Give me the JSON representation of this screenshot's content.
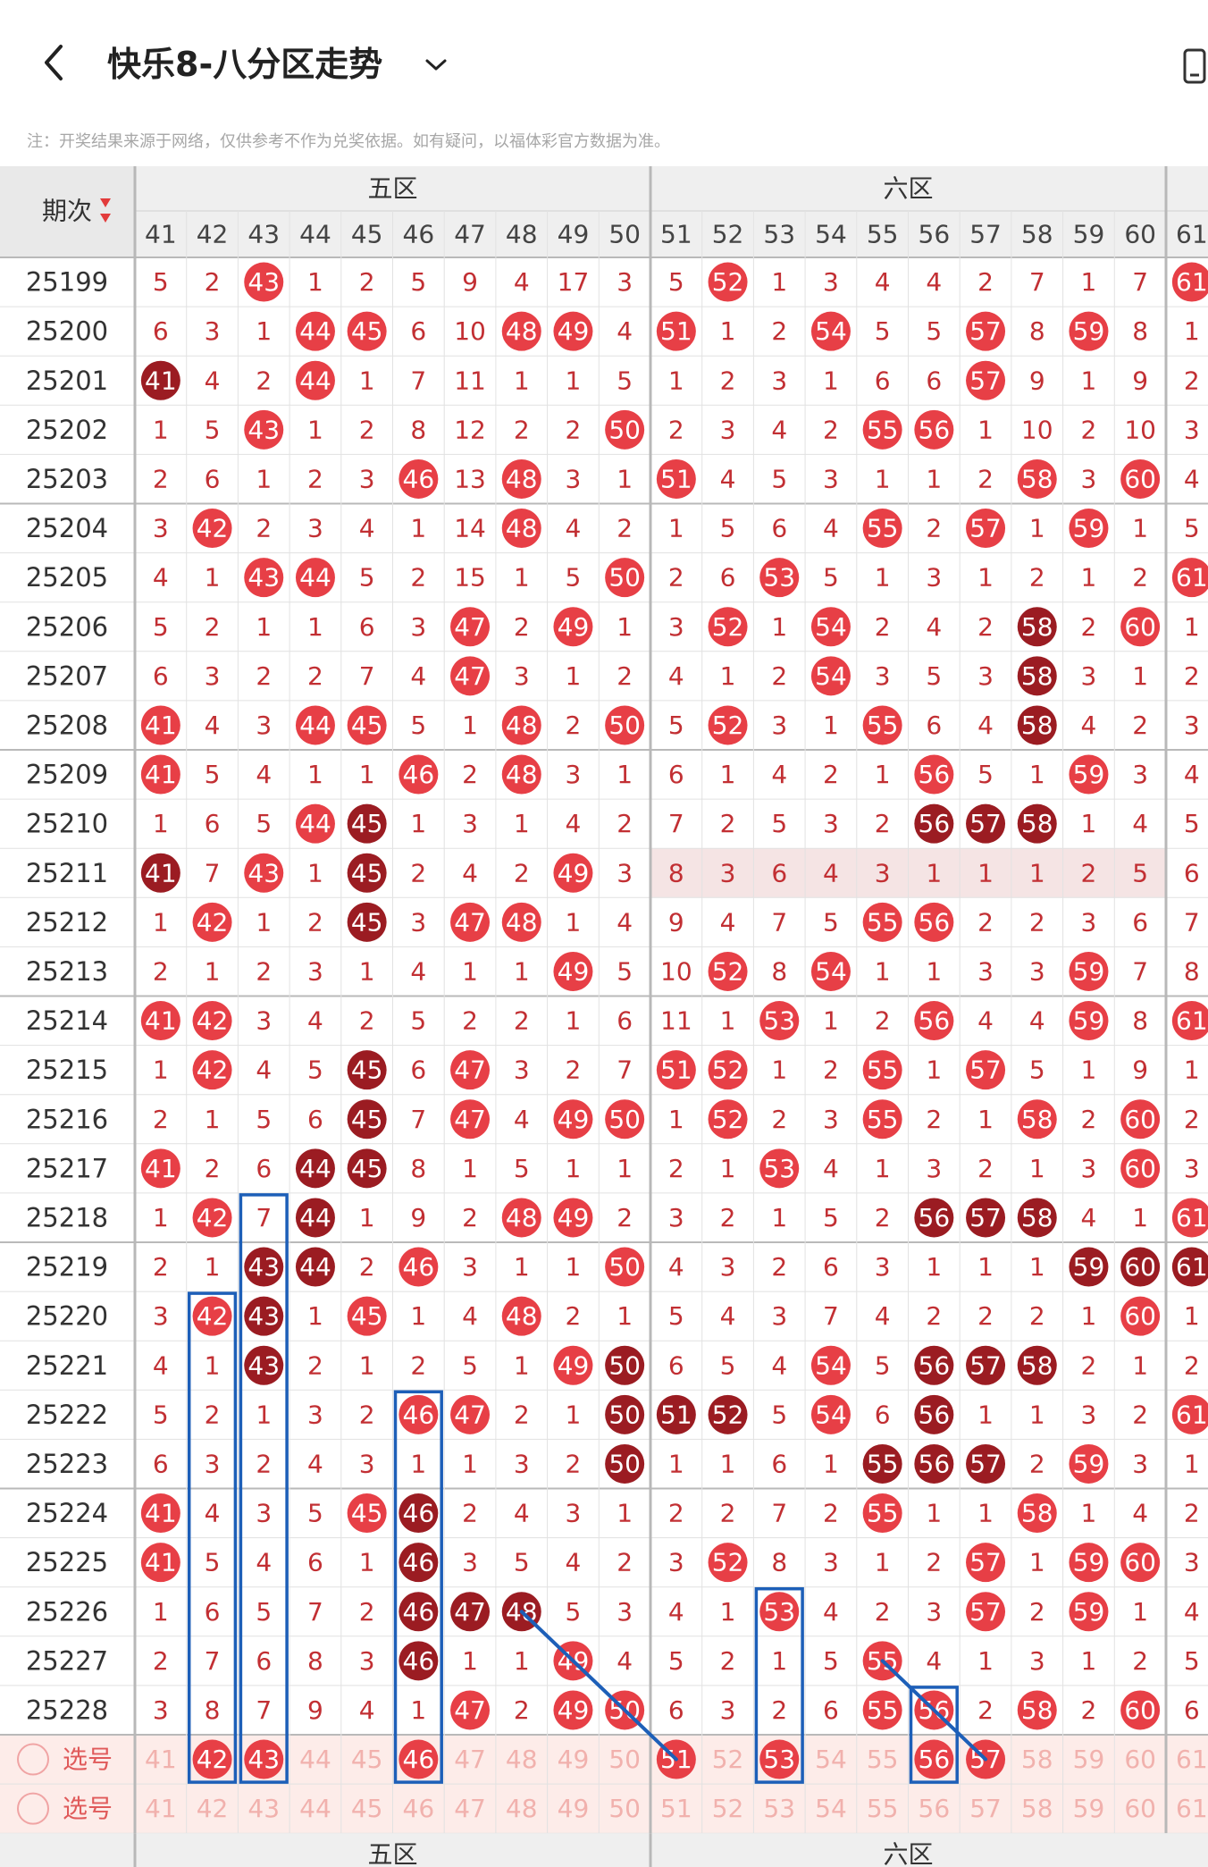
{
  "header": {
    "title": "快乐8-八分区走势",
    "note": "注：开奖结果来源于网络，仅供参考不作为兑奖依据。如有疑问，以福体彩官方数据为准。"
  },
  "table": {
    "period_header": "期次",
    "zones": [
      "五区",
      "六区"
    ],
    "numbers": [
      41,
      42,
      43,
      44,
      45,
      46,
      47,
      48,
      49,
      50,
      51,
      52,
      53,
      54,
      55,
      56,
      57,
      58,
      59,
      60,
      61
    ],
    "select_label": "选号",
    "highlight_row_period": "25211",
    "colors": {
      "hit": "#e73f46",
      "consecutive": "#9b1c22",
      "miss_text": "#c22f33",
      "accent": "#1d5fb8",
      "row_highlight": "#f5e4e4",
      "select_bg": "#fdece9",
      "header_bg": "#efefef"
    },
    "rows": [
      {
        "period": "25199",
        "cells": [
          "5",
          "2",
          "h43",
          "1",
          "2",
          "5",
          "9",
          "4",
          "17",
          "3",
          "5",
          "h52",
          "1",
          "3",
          "4",
          "4",
          "2",
          "7",
          "1",
          "7",
          "h61"
        ]
      },
      {
        "period": "25200",
        "cells": [
          "6",
          "3",
          "1",
          "h44",
          "h45",
          "6",
          "10",
          "h48",
          "h49",
          "4",
          "h51",
          "1",
          "2",
          "h54",
          "5",
          "5",
          "h57",
          "8",
          "h59",
          "8",
          "1"
        ]
      },
      {
        "period": "25201",
        "cells": [
          "d41",
          "4",
          "2",
          "h44",
          "1",
          "7",
          "11",
          "1",
          "1",
          "5",
          "1",
          "2",
          "3",
          "1",
          "6",
          "6",
          "h57",
          "9",
          "1",
          "9",
          "2"
        ]
      },
      {
        "period": "25202",
        "cells": [
          "1",
          "5",
          "h43",
          "1",
          "2",
          "8",
          "12",
          "2",
          "2",
          "h50",
          "2",
          "3",
          "4",
          "2",
          "h55",
          "h56",
          "1",
          "10",
          "2",
          "10",
          "3"
        ]
      },
      {
        "period": "25203",
        "cells": [
          "2",
          "6",
          "1",
          "2",
          "3",
          "h46",
          "13",
          "h48",
          "3",
          "1",
          "h51",
          "4",
          "5",
          "3",
          "1",
          "1",
          "2",
          "h58",
          "3",
          "h60",
          "4"
        ]
      },
      {
        "period": "25204",
        "cells": [
          "3",
          "h42",
          "2",
          "3",
          "4",
          "1",
          "14",
          "h48",
          "4",
          "2",
          "1",
          "5",
          "6",
          "4",
          "h55",
          "2",
          "h57",
          "1",
          "h59",
          "1",
          "5"
        ]
      },
      {
        "period": "25205",
        "cells": [
          "4",
          "1",
          "h43",
          "h44",
          "5",
          "2",
          "15",
          "1",
          "5",
          "h50",
          "2",
          "6",
          "h53",
          "5",
          "1",
          "3",
          "1",
          "2",
          "1",
          "2",
          "h61"
        ]
      },
      {
        "period": "25206",
        "cells": [
          "5",
          "2",
          "1",
          "1",
          "6",
          "3",
          "h47",
          "2",
          "h49",
          "1",
          "3",
          "h52",
          "1",
          "h54",
          "2",
          "4",
          "2",
          "d58",
          "2",
          "h60",
          "1"
        ]
      },
      {
        "period": "25207",
        "cells": [
          "6",
          "3",
          "2",
          "2",
          "7",
          "4",
          "h47",
          "3",
          "1",
          "2",
          "4",
          "1",
          "2",
          "h54",
          "3",
          "5",
          "3",
          "d58",
          "3",
          "1",
          "2"
        ]
      },
      {
        "period": "25208",
        "cells": [
          "h41",
          "4",
          "3",
          "h44",
          "h45",
          "5",
          "1",
          "h48",
          "2",
          "h50",
          "5",
          "h52",
          "3",
          "1",
          "h55",
          "6",
          "4",
          "d58",
          "4",
          "2",
          "3"
        ]
      },
      {
        "period": "25209",
        "cells": [
          "h41",
          "5",
          "4",
          "1",
          "1",
          "h46",
          "2",
          "h48",
          "3",
          "1",
          "6",
          "1",
          "4",
          "2",
          "1",
          "h56",
          "5",
          "1",
          "h59",
          "3",
          "4"
        ]
      },
      {
        "period": "25210",
        "cells": [
          "1",
          "6",
          "5",
          "h44",
          "d45",
          "1",
          "3",
          "1",
          "4",
          "2",
          "7",
          "2",
          "5",
          "3",
          "2",
          "d56",
          "d57",
          "d58",
          "1",
          "4",
          "5"
        ]
      },
      {
        "period": "25211",
        "cells": [
          "d41",
          "7",
          "h43",
          "1",
          "d45",
          "2",
          "4",
          "2",
          "h49",
          "3",
          "8",
          "3",
          "6",
          "4",
          "3",
          "1",
          "1",
          "1",
          "2",
          "5",
          "6"
        ]
      },
      {
        "period": "25212",
        "cells": [
          "1",
          "h42",
          "1",
          "2",
          "d45",
          "3",
          "h47",
          "h48",
          "1",
          "4",
          "9",
          "4",
          "7",
          "5",
          "h55",
          "h56",
          "2",
          "2",
          "3",
          "6",
          "7"
        ]
      },
      {
        "period": "25213",
        "cells": [
          "2",
          "1",
          "2",
          "3",
          "1",
          "4",
          "1",
          "1",
          "h49",
          "5",
          "10",
          "h52",
          "8",
          "h54",
          "1",
          "1",
          "3",
          "3",
          "h59",
          "7",
          "8"
        ]
      },
      {
        "period": "25214",
        "cells": [
          "h41",
          "h42",
          "3",
          "4",
          "2",
          "5",
          "2",
          "2",
          "1",
          "6",
          "11",
          "1",
          "h53",
          "1",
          "2",
          "h56",
          "4",
          "4",
          "h59",
          "8",
          "h61"
        ]
      },
      {
        "period": "25215",
        "cells": [
          "1",
          "h42",
          "4",
          "5",
          "d45",
          "6",
          "h47",
          "3",
          "2",
          "7",
          "h51",
          "h52",
          "1",
          "2",
          "h55",
          "1",
          "h57",
          "5",
          "1",
          "9",
          "1"
        ]
      },
      {
        "period": "25216",
        "cells": [
          "2",
          "1",
          "5",
          "6",
          "d45",
          "7",
          "h47",
          "4",
          "h49",
          "h50",
          "1",
          "h52",
          "2",
          "3",
          "h55",
          "2",
          "1",
          "h58",
          "2",
          "h60",
          "2"
        ]
      },
      {
        "period": "25217",
        "cells": [
          "h41",
          "2",
          "6",
          "d44",
          "d45",
          "8",
          "1",
          "5",
          "1",
          "1",
          "2",
          "1",
          "h53",
          "4",
          "1",
          "3",
          "2",
          "1",
          "3",
          "h60",
          "3"
        ]
      },
      {
        "period": "25218",
        "cells": [
          "1",
          "h42",
          "7",
          "d44",
          "1",
          "9",
          "2",
          "h48",
          "h49",
          "2",
          "3",
          "2",
          "1",
          "5",
          "2",
          "d56",
          "d57",
          "d58",
          "4",
          "1",
          "h61"
        ]
      },
      {
        "period": "25219",
        "cells": [
          "2",
          "1",
          "d43",
          "d44",
          "2",
          "h46",
          "3",
          "1",
          "1",
          "h50",
          "4",
          "3",
          "2",
          "6",
          "3",
          "1",
          "1",
          "1",
          "d59",
          "d60",
          "d61"
        ]
      },
      {
        "period": "25220",
        "cells": [
          "3",
          "h42",
          "d43",
          "1",
          "h45",
          "1",
          "4",
          "h48",
          "2",
          "1",
          "5",
          "4",
          "3",
          "7",
          "4",
          "2",
          "2",
          "2",
          "1",
          "h60",
          "1"
        ]
      },
      {
        "period": "25221",
        "cells": [
          "4",
          "1",
          "d43",
          "2",
          "1",
          "2",
          "5",
          "1",
          "h49",
          "d50",
          "6",
          "5",
          "4",
          "h54",
          "5",
          "d56",
          "d57",
          "d58",
          "2",
          "1",
          "2"
        ]
      },
      {
        "period": "25222",
        "cells": [
          "5",
          "2",
          "1",
          "3",
          "2",
          "h46",
          "h47",
          "2",
          "1",
          "d50",
          "d51",
          "d52",
          "5",
          "h54",
          "6",
          "d56",
          "1",
          "1",
          "3",
          "2",
          "h61"
        ]
      },
      {
        "period": "25223",
        "cells": [
          "6",
          "3",
          "2",
          "4",
          "3",
          "1",
          "1",
          "3",
          "2",
          "d50",
          "1",
          "1",
          "6",
          "1",
          "d55",
          "d56",
          "d57",
          "2",
          "h59",
          "3",
          "1"
        ]
      },
      {
        "period": "25224",
        "cells": [
          "h41",
          "4",
          "3",
          "5",
          "h45",
          "d46",
          "2",
          "4",
          "3",
          "1",
          "2",
          "2",
          "7",
          "2",
          "h55",
          "1",
          "1",
          "h58",
          "1",
          "4",
          "2"
        ]
      },
      {
        "period": "25225",
        "cells": [
          "h41",
          "5",
          "4",
          "6",
          "1",
          "d46",
          "3",
          "5",
          "4",
          "2",
          "3",
          "h52",
          "8",
          "3",
          "1",
          "2",
          "h57",
          "1",
          "h59",
          "h60",
          "3"
        ]
      },
      {
        "period": "25226",
        "cells": [
          "1",
          "6",
          "5",
          "7",
          "2",
          "d46",
          "d47",
          "d48",
          "5",
          "3",
          "4",
          "1",
          "h53",
          "4",
          "2",
          "3",
          "h57",
          "2",
          "h59",
          "1",
          "4"
        ]
      },
      {
        "period": "25227",
        "cells": [
          "2",
          "7",
          "6",
          "8",
          "3",
          "d46",
          "1",
          "1",
          "h49",
          "4",
          "5",
          "2",
          "1",
          "5",
          "h55",
          "4",
          "1",
          "3",
          "1",
          "2",
          "5"
        ]
      },
      {
        "period": "25228",
        "cells": [
          "3",
          "8",
          "7",
          "9",
          "4",
          "1",
          "h47",
          "2",
          "h49",
          "h50",
          "6",
          "3",
          "2",
          "6",
          "h55",
          "h56",
          "2",
          "h58",
          "2",
          "h60",
          "6"
        ]
      }
    ],
    "select_row_1": {
      "selected": [
        42,
        43,
        46,
        51,
        53,
        56,
        57
      ]
    },
    "select_row_2": {
      "selected": []
    }
  }
}
